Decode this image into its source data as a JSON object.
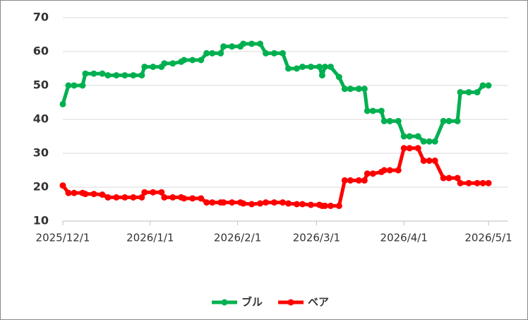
{
  "chart_data": {
    "type": "line",
    "x": [
      "2025-12-01",
      "2025-12-03",
      "2025-12-05",
      "2025-12-08",
      "2025-12-09",
      "2025-12-12",
      "2025-12-15",
      "2025-12-17",
      "2025-12-20",
      "2025-12-23",
      "2025-12-26",
      "2025-12-29",
      "2025-12-30",
      "2026-01-02",
      "2026-01-05",
      "2026-01-06",
      "2026-01-09",
      "2026-01-12",
      "2026-01-13",
      "2026-01-16",
      "2026-01-19",
      "2026-01-21",
      "2026-01-23",
      "2026-01-26",
      "2026-01-27",
      "2026-01-30",
      "2026-02-02",
      "2026-02-03",
      "2026-02-06",
      "2026-02-09",
      "2026-02-11",
      "2026-02-14",
      "2026-02-17",
      "2026-02-19",
      "2026-02-22",
      "2026-02-24",
      "2026-02-27",
      "2026-03-02",
      "2026-03-03",
      "2026-03-04",
      "2026-03-06",
      "2026-03-09",
      "2026-03-11",
      "2026-03-13",
      "2026-03-16",
      "2026-03-18",
      "2026-03-19",
      "2026-03-21",
      "2026-03-24",
      "2026-03-25",
      "2026-03-27",
      "2026-03-30",
      "2026-04-01",
      "2026-04-03",
      "2026-04-06",
      "2026-04-08",
      "2026-04-10",
      "2026-04-12",
      "2026-04-15",
      "2026-04-17",
      "2026-04-20",
      "2026-04-21",
      "2026-04-24",
      "2026-04-27",
      "2026-04-29",
      "2026-05-01"
    ],
    "series": [
      {
        "name": "ブル",
        "color": "#00b050",
        "values": [
          44.5,
          50,
          50,
          50,
          53.5,
          53.5,
          53.5,
          53,
          53,
          53,
          53,
          53,
          55.5,
          55.5,
          55.5,
          56.5,
          56.5,
          57,
          57.5,
          57.5,
          57.5,
          59.5,
          59.5,
          59.5,
          61.5,
          61.5,
          61.5,
          62.3,
          62.3,
          62.3,
          59.5,
          59.5,
          59.5,
          55,
          55,
          55.5,
          55.5,
          55.5,
          53,
          55.5,
          55.5,
          52.5,
          49,
          49,
          49,
          49,
          42.5,
          42.5,
          42.5,
          39.5,
          39.5,
          39.5,
          35,
          35,
          35,
          33.5,
          33.5,
          33.5,
          39.5,
          39.5,
          39.5,
          48,
          48,
          48,
          50,
          50
        ]
      },
      {
        "name": "ベア",
        "color": "#ff0000",
        "values": [
          20.5,
          18.3,
          18.3,
          18.3,
          18,
          18,
          17.8,
          17,
          17,
          17,
          17,
          17,
          18.5,
          18.5,
          18.5,
          17,
          17,
          17,
          16.7,
          16.7,
          16.7,
          15.5,
          15.5,
          15.5,
          15.5,
          15.5,
          15.5,
          15.2,
          15,
          15.2,
          15.5,
          15.5,
          15.5,
          15.2,
          15,
          15,
          14.8,
          14.8,
          14.5,
          14.5,
          14.5,
          14.5,
          22,
          22,
          22,
          22,
          24,
          24,
          24.5,
          25,
          25,
          25,
          31.5,
          31.5,
          31.5,
          27.8,
          27.8,
          27.8,
          22.7,
          22.7,
          22.7,
          21.2,
          21.2,
          21.2,
          21.2,
          21.2
        ]
      }
    ],
    "xlim": [
      "2025-12-01",
      "2026-05-08"
    ],
    "xticks": [
      {
        "value": "2025-12-01",
        "label": "2025/12/1"
      },
      {
        "value": "2026-01-01",
        "label": "2026/1/1"
      },
      {
        "value": "2026-02-01",
        "label": "2026/2/1"
      },
      {
        "value": "2026-03-01",
        "label": "2026/3/1"
      },
      {
        "value": "2026-04-01",
        "label": "2026/4/1"
      },
      {
        "value": "2026-05-01",
        "label": "2026/5/1"
      }
    ],
    "ylim": [
      10,
      70
    ],
    "yticks": [
      10,
      20,
      30,
      40,
      50,
      60,
      70
    ],
    "grid": true,
    "legend": "bottom"
  }
}
